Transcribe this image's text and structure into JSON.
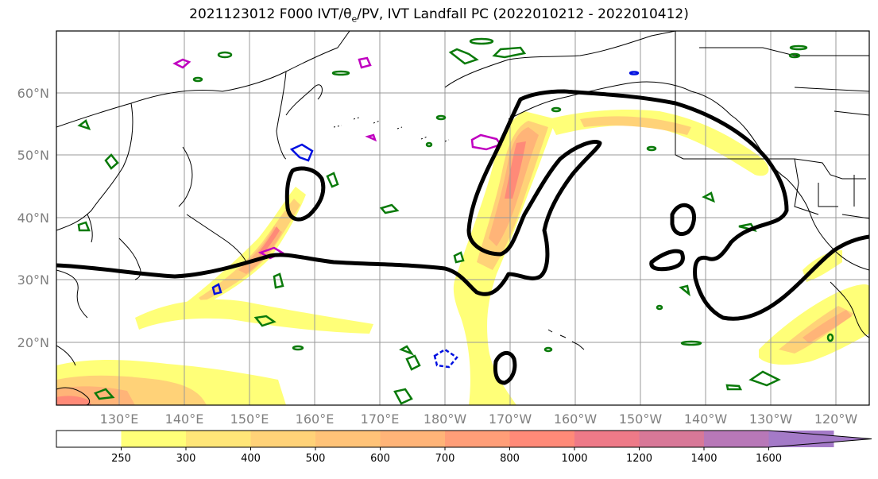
{
  "header": {
    "title_pre": "2021123012 F000 IVT/θ",
    "title_sub": "e",
    "title_post": "/PV, IVT Landfall PC (2022010212 - 2022010412)"
  },
  "map": {
    "lat_labels": [
      "60°N",
      "50°N",
      "40°N",
      "30°N",
      "20°N"
    ],
    "lon_labels": [
      "130°E",
      "140°E",
      "150°E",
      "160°E",
      "170°E",
      "180°W",
      "170°W",
      "160°W",
      "150°W",
      "140°W",
      "130°W",
      "120°W"
    ]
  },
  "colorbar": {
    "ticks": [
      "250",
      "300",
      "400",
      "500",
      "600",
      "700",
      "800",
      "1000",
      "1200",
      "1400",
      "1600"
    ],
    "colors": [
      "#ffffff",
      "#ffff78",
      "#ffe678",
      "#ffd278",
      "#ffc378",
      "#ffb478",
      "#ff9e78",
      "#ff8a78",
      "#ee7a88",
      "#d87898",
      "#b878b8",
      "#a47ac8"
    ]
  }
}
